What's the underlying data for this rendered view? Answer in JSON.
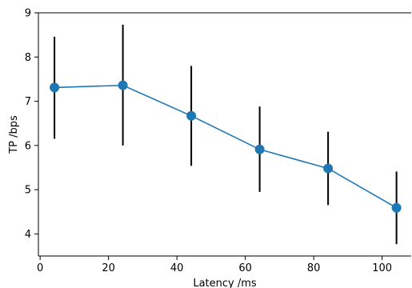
{
  "chart_data": {
    "type": "line",
    "title": "",
    "xlabel": "Latency /ms",
    "ylabel": "TP /bps",
    "xlim": [
      -0.5,
      108.5
    ],
    "ylim": [
      3.5,
      9.0
    ],
    "xticks": [
      0,
      20,
      40,
      60,
      80,
      100
    ],
    "yticks": [
      4,
      5,
      6,
      7,
      8,
      9
    ],
    "grid": false,
    "legend": "none",
    "series": [
      {
        "x": [
          4.2,
          24.2,
          44.2,
          64.2,
          84.2,
          104.2
        ],
        "y": [
          7.31,
          7.36,
          6.67,
          5.91,
          5.48,
          4.59
        ],
        "err_low": [
          6.15,
          6.0,
          5.54,
          4.95,
          4.65,
          3.77
        ],
        "err_high": [
          8.46,
          8.73,
          7.8,
          6.88,
          6.31,
          5.41
        ],
        "color": "#1f77b4"
      }
    ],
    "errorbar_color": "#000000"
  }
}
